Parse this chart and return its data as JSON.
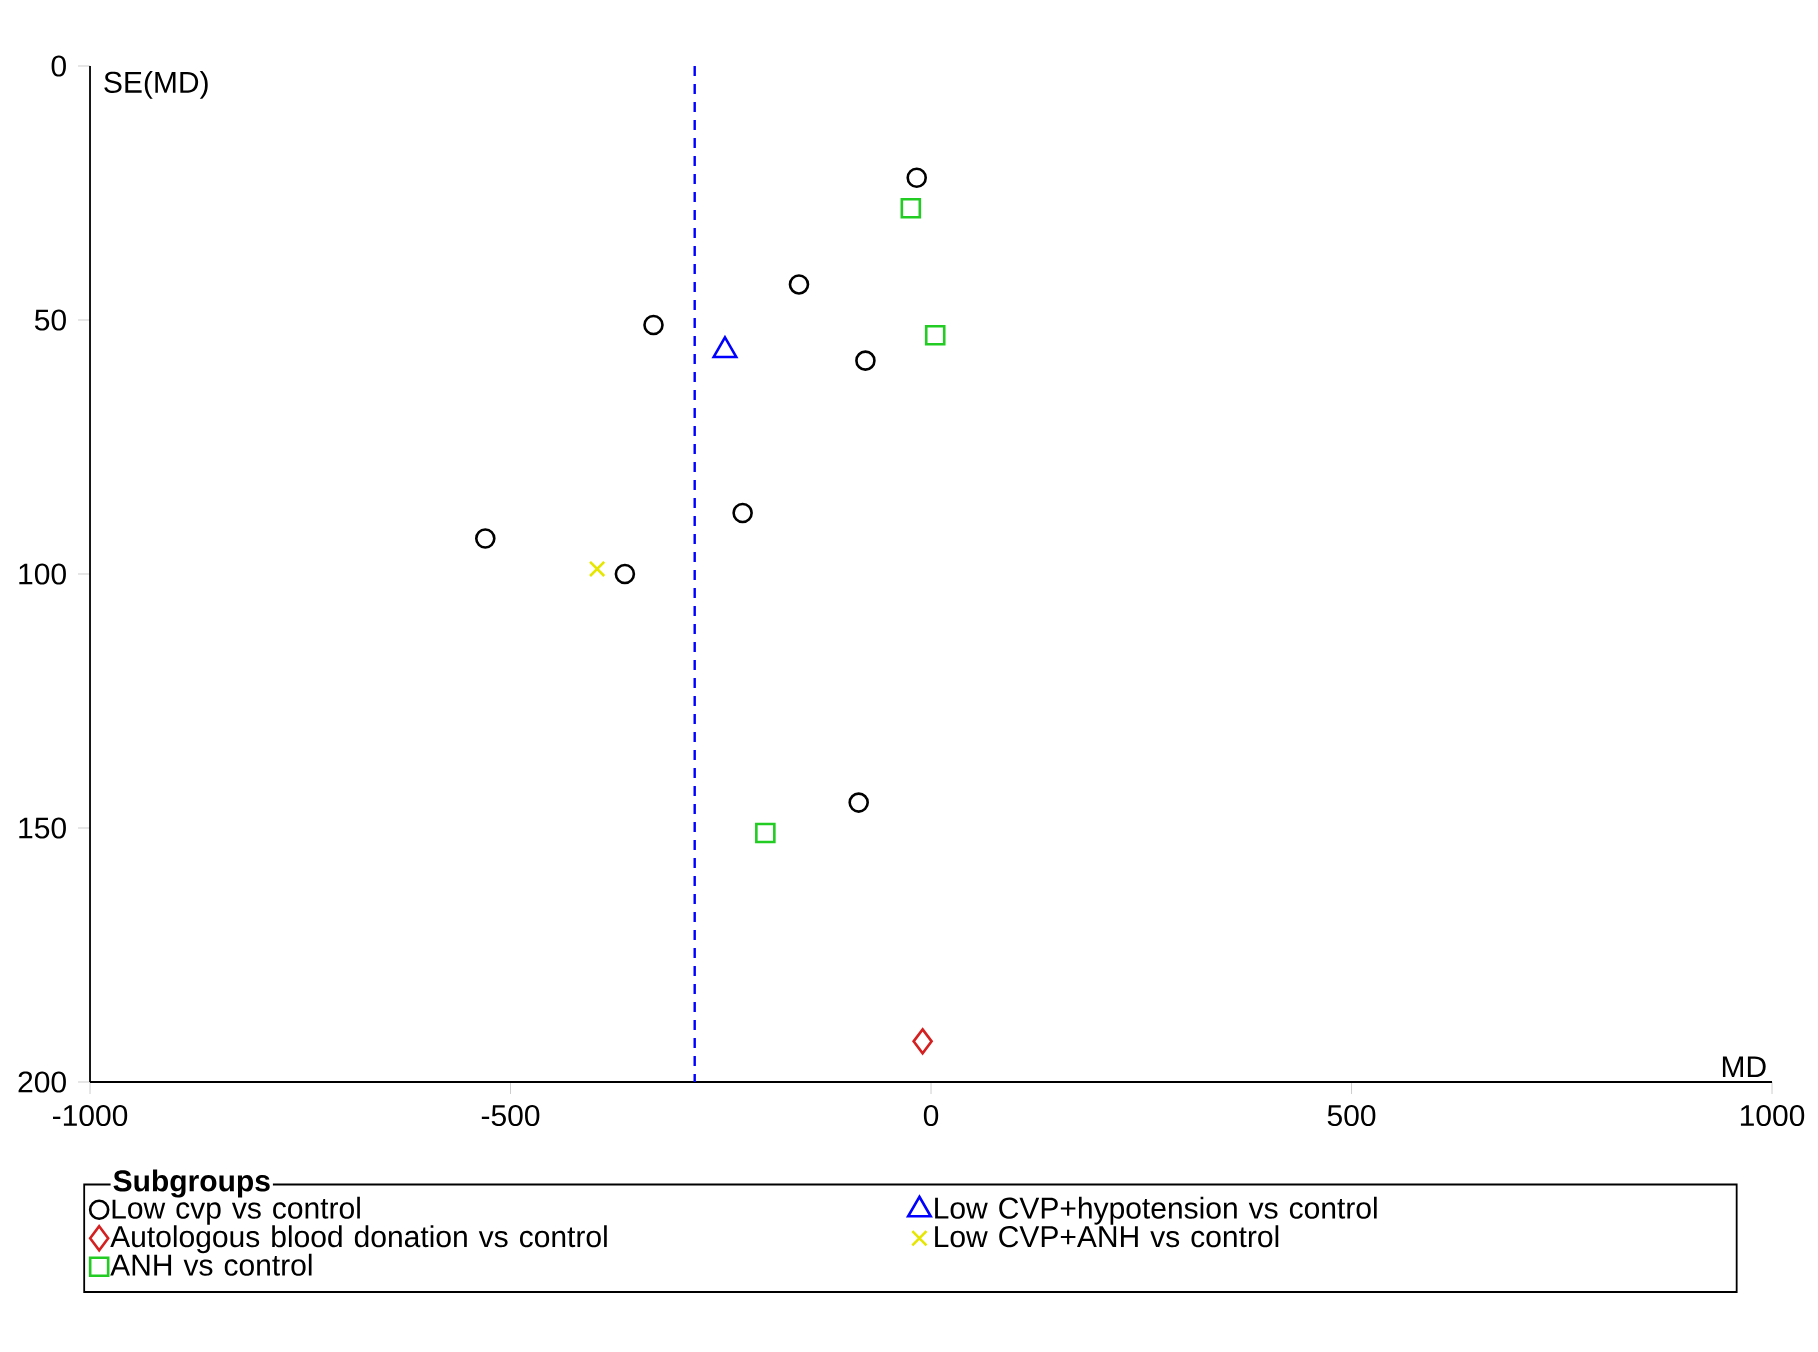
{
  "chart_data": {
    "type": "scatter",
    "xlabel": "MD",
    "ylabel": "SE(MD)",
    "legend_title": "Subgroups",
    "xlim": [
      -1000,
      1000
    ],
    "ylim": [
      200,
      0
    ],
    "xticks": [
      -1000,
      -500,
      0,
      500,
      1000
    ],
    "yticks": [
      0,
      50,
      100,
      150,
      200
    ],
    "legend": "bottom",
    "grid": false,
    "series": [
      {
        "name": "Low cvp vs control",
        "color": "#000000",
        "marker": "circle",
        "x": [
          -17,
          -157,
          -330,
          -78,
          -224,
          -530,
          -364,
          -86
        ],
        "values": [
          22,
          43,
          51,
          58,
          88,
          93,
          100,
          145
        ]
      },
      {
        "name": "Low CVP+hypotension vs control",
        "color": "#0000ff",
        "marker": "triangle",
        "x": [
          -245
        ],
        "values": [
          56
        ]
      },
      {
        "name": "Autologous blood donation vs control",
        "color": "#d42020",
        "marker": "diamond",
        "x": [
          -10
        ],
        "values": [
          192
        ]
      },
      {
        "name": "Low CVP+ANH vs control",
        "color": "#e6e600",
        "marker": "cross",
        "x": [
          -397
        ],
        "values": [
          99
        ]
      },
      {
        "name": "ANH vs control",
        "color": "#22cc22",
        "marker": "square",
        "x": [
          -24,
          5,
          -197
        ],
        "values": [
          28,
          53,
          151
        ]
      }
    ],
    "ref_lines": [
      {
        "axis": "x",
        "value": -281,
        "color": "#0000ff",
        "line_style": "dashed"
      }
    ]
  }
}
